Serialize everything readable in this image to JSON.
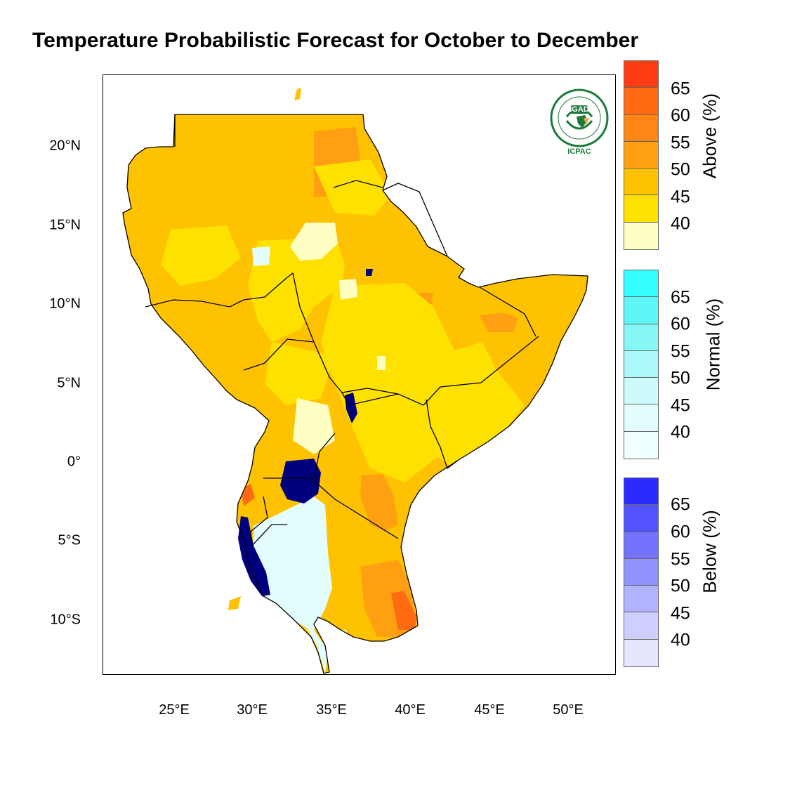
{
  "title": "Temperature Probabilistic Forecast for October to December",
  "axes": {
    "lat_labels": [
      "20°N",
      "15°N",
      "10°N",
      "5°N",
      "0°",
      "5°S",
      "10°S"
    ],
    "lon_labels": [
      "25°E",
      "30°E",
      "35°E",
      "40°E",
      "45°E",
      "50°E"
    ]
  },
  "logo": {
    "name": "IGAD",
    "caption": "ICPAC"
  },
  "legends": [
    {
      "title": "Above (%)",
      "ticks": [
        "65",
        "60",
        "55",
        "50",
        "45",
        "40"
      ],
      "colors": [
        "#ff3b12",
        "#ff6a12",
        "#ff8614",
        "#ffa012",
        "#ffc200",
        "#ffe100",
        "#ffffc4"
      ]
    },
    {
      "title": "Normal (%)",
      "ticks": [
        "65",
        "60",
        "55",
        "50",
        "45",
        "40"
      ],
      "colors": [
        "#33ffff",
        "#5df5f5",
        "#86f6f6",
        "#abf8f8",
        "#cdfafa",
        "#e3fdfd",
        "#f0ffff"
      ]
    },
    {
      "title": "Below (%)",
      "ticks": [
        "65",
        "60",
        "55",
        "50",
        "45",
        "40"
      ],
      "colors": [
        "#2b2bff",
        "#5252ff",
        "#7373ff",
        "#9292ff",
        "#b2b2ff",
        "#cfcfff",
        "#e6e6ff"
      ]
    }
  ]
}
